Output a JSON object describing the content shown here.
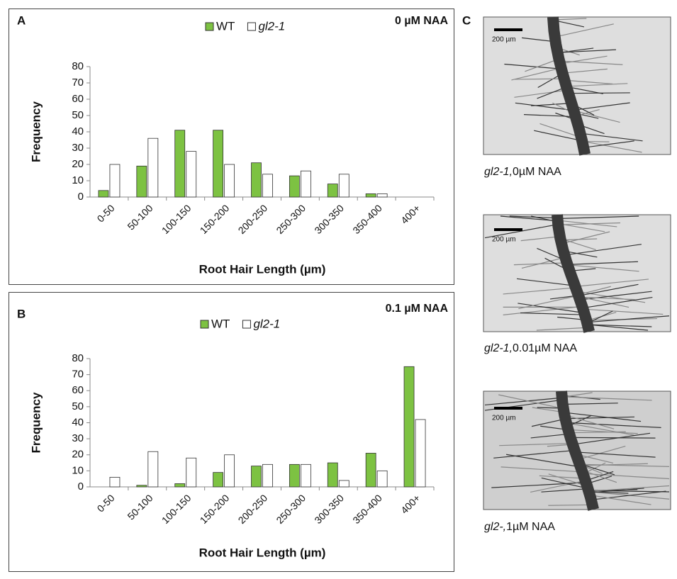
{
  "chart_data": [
    {
      "type": "bar",
      "panel_label": "A",
      "title": "0 µM NAA",
      "categories": [
        "0-50",
        "50-100",
        "100-150",
        "150-200",
        "200-250",
        "250-300",
        "300-350",
        "350-400",
        "400+"
      ],
      "series": [
        {
          "name": "WT",
          "color": "#7dc242",
          "values": [
            4,
            19,
            41,
            41,
            21,
            13,
            8,
            2,
            0
          ]
        },
        {
          "name": "gl2-1",
          "color": "#ffffff",
          "values": [
            20,
            36,
            28,
            20,
            14,
            16,
            14,
            2,
            0
          ]
        }
      ],
      "ylim": [
        0,
        80
      ],
      "yticks": [
        0,
        10,
        20,
        30,
        40,
        50,
        60,
        70,
        80
      ],
      "xlabel": "Root Hair Length (µm)",
      "ylabel": "Frequency",
      "grid": false,
      "legend": "top"
    },
    {
      "type": "bar",
      "panel_label": "B",
      "title": "0.1 µM NAA",
      "categories": [
        "0-50",
        "50-100",
        "100-150",
        "150-200",
        "200-250",
        "250-300",
        "300-350",
        "350-400",
        "400+"
      ],
      "series": [
        {
          "name": "WT",
          "color": "#7dc242",
          "values": [
            0,
            1,
            2,
            9,
            13,
            14,
            15,
            21,
            75
          ]
        },
        {
          "name": "gl2-1",
          "color": "#ffffff",
          "values": [
            6,
            22,
            18,
            20,
            14,
            14,
            4,
            10,
            42
          ]
        }
      ],
      "ylim": [
        0,
        80
      ],
      "yticks": [
        0,
        10,
        20,
        30,
        40,
        50,
        60,
        70,
        80
      ],
      "xlabel": "Root Hair Length (µm)",
      "ylabel": "Frequency",
      "grid": false,
      "legend": "top"
    }
  ],
  "panel_c": {
    "label": "C",
    "images": [
      {
        "scale_bar": "200 µm",
        "gene": "gl2-1,",
        "condition": "0µM NAA"
      },
      {
        "scale_bar": "200 µm",
        "gene": "gl2-1,",
        "condition": "0.01µM NAA"
      },
      {
        "scale_bar": "200 µm",
        "gene": "gl2-,",
        "condition": "1µM NAA"
      }
    ]
  }
}
